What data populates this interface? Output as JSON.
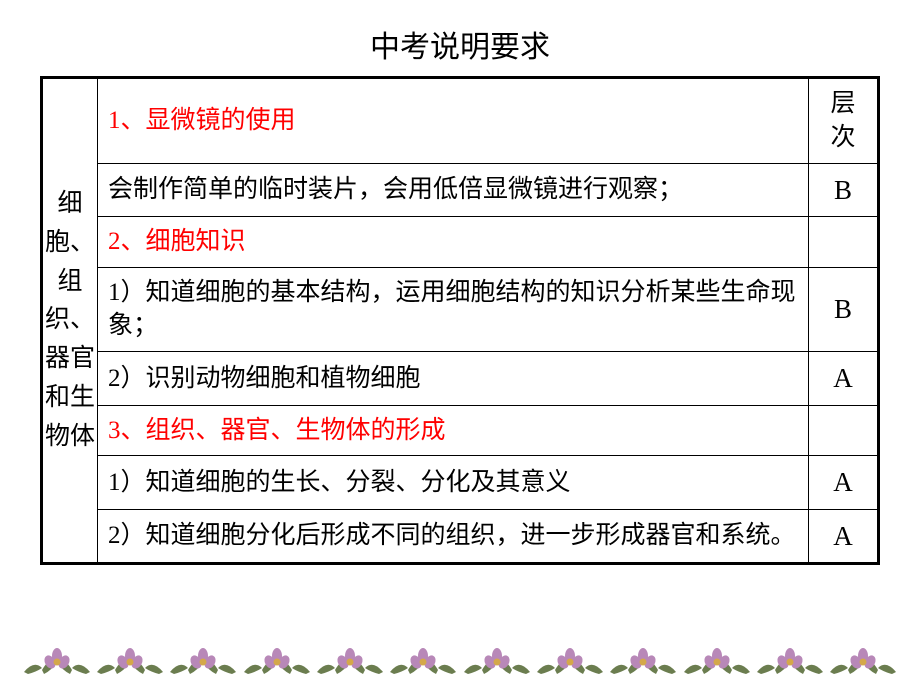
{
  "title": "中考说明要求",
  "table": {
    "row_span_header": "细胞、组织、器官和生物体",
    "level_header": "层次",
    "rows": [
      {
        "content": "1、显微镜的使用",
        "level": "",
        "red": true
      },
      {
        "content": "会制作简单的临时装片，会用低倍显微镜进行观察；",
        "level": "B",
        "red": false
      },
      {
        "content": "2、细胞知识",
        "level": "",
        "red": true
      },
      {
        "content": "1）知道细胞的基本结构，运用细胞结构的知识分析某些生命现象；",
        "level": "B",
        "red": false
      },
      {
        "content": "2）识别动物细胞和植物细胞",
        "level": "A",
        "red": false
      },
      {
        "content": "3、组织、器官、生物体的形成",
        "level": "",
        "red": true
      },
      {
        "content": "1）知道细胞的生长、分裂、分化及其意义",
        "level": "A",
        "red": false
      },
      {
        "content": "2）知道细胞分化后形成不同的组织，进一步形成器官和系统。",
        "level": "A",
        "red": false
      }
    ]
  },
  "decor": {
    "count": 12,
    "colors": {
      "leaf": "#6b7d4f",
      "flower": "#b888b8",
      "center": "#d4a84a"
    }
  }
}
